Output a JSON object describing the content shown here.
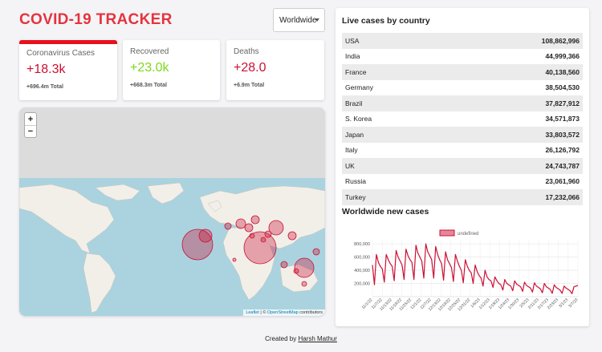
{
  "app": {
    "title": "COVID-19 TRACKER"
  },
  "country_select": {
    "value": "Worldwide"
  },
  "cards": [
    {
      "label": "Coronavirus Cases",
      "value": "+18.3k",
      "total": "+696.4m Total",
      "color": "#cc1034",
      "active": true
    },
    {
      "label": "Recovered",
      "value": "+23.0k",
      "total": "+668.3m Total",
      "color": "#7dd71d",
      "active": false
    },
    {
      "label": "Deaths",
      "value": "+28.0",
      "total": "+6.9m Total",
      "color": "#cc1034",
      "active": false
    }
  ],
  "map": {
    "zoom_in": "+",
    "zoom_out": "−",
    "attribution_leaflet": "Leaflet",
    "attribution_sep": " | © ",
    "attribution_osm": "OpenStreetMap",
    "attribution_suffix": " contributors",
    "circle_color": "#cc1034"
  },
  "live_cases": {
    "title": "Live cases by country",
    "rows": [
      {
        "country": "USA",
        "cases": "108,862,996"
      },
      {
        "country": "India",
        "cases": "44,999,366"
      },
      {
        "country": "France",
        "cases": "40,138,560"
      },
      {
        "country": "Germany",
        "cases": "38,504,530"
      },
      {
        "country": "Brazil",
        "cases": "37,827,912"
      },
      {
        "country": "S. Korea",
        "cases": "34,571,873"
      },
      {
        "country": "Japan",
        "cases": "33,803,572"
      },
      {
        "country": "Italy",
        "cases": "26,126,792"
      },
      {
        "country": "UK",
        "cases": "24,743,787"
      },
      {
        "country": "Russia",
        "cases": "23,061,960"
      },
      {
        "country": "Turkey",
        "cases": "17,232,066"
      }
    ]
  },
  "new_cases": {
    "title": "Worldwide new cases"
  },
  "chart_data": {
    "type": "line",
    "legend": "undefined",
    "legend_placement": "top-center",
    "grid": true,
    "color": "#cc1034",
    "fill": "rgba(204,16,52,0.5)",
    "ylim": [
      0,
      850000
    ],
    "yticks": [
      200000,
      400000,
      600000,
      800000
    ],
    "ytick_labels": [
      "200,000",
      "400,000",
      "600,000",
      "800,000"
    ],
    "xtick_labels": [
      "11/1/22",
      "11/7/22",
      "11/13/22",
      "11/19/22",
      "11/25/22",
      "12/1/22",
      "12/7/22",
      "12/13/22",
      "12/19/22",
      "12/25/22",
      "12/31/22",
      "1/6/23",
      "1/12/23",
      "1/18/23",
      "1/24/23",
      "1/30/23",
      "2/5/23",
      "2/11/23",
      "2/17/23",
      "2/23/23",
      "3/1/23",
      "3/7/23"
    ],
    "values": [
      480000,
      180000,
      640000,
      520000,
      460000,
      420000,
      220000,
      640000,
      560000,
      500000,
      460000,
      240000,
      700000,
      600000,
      540000,
      480000,
      260000,
      720000,
      620000,
      560000,
      520000,
      260000,
      780000,
      660000,
      600000,
      540000,
      280000,
      800000,
      680000,
      620000,
      560000,
      280000,
      760000,
      640000,
      560000,
      500000,
      250000,
      680000,
      560000,
      500000,
      440000,
      230000,
      640000,
      540000,
      460000,
      400000,
      210000,
      560000,
      460000,
      400000,
      360000,
      200000,
      480000,
      380000,
      320000,
      280000,
      160000,
      400000,
      300000,
      260000,
      240000,
      140000,
      300000,
      240000,
      200000,
      180000,
      100000,
      260000,
      200000,
      180000,
      160000,
      90000,
      240000,
      190000,
      170000,
      150000,
      80000,
      220000,
      170000,
      150000,
      130000,
      70000,
      210000,
      160000,
      140000,
      120000,
      60000,
      200000,
      150000,
      130000,
      110000,
      50000,
      180000,
      140000,
      120000,
      100000,
      50000,
      160000,
      130000,
      110000,
      90000,
      45000,
      150000,
      160000,
      170000
    ]
  },
  "footer": {
    "prefix": "Created by ",
    "author": "Harsh Mathur"
  }
}
